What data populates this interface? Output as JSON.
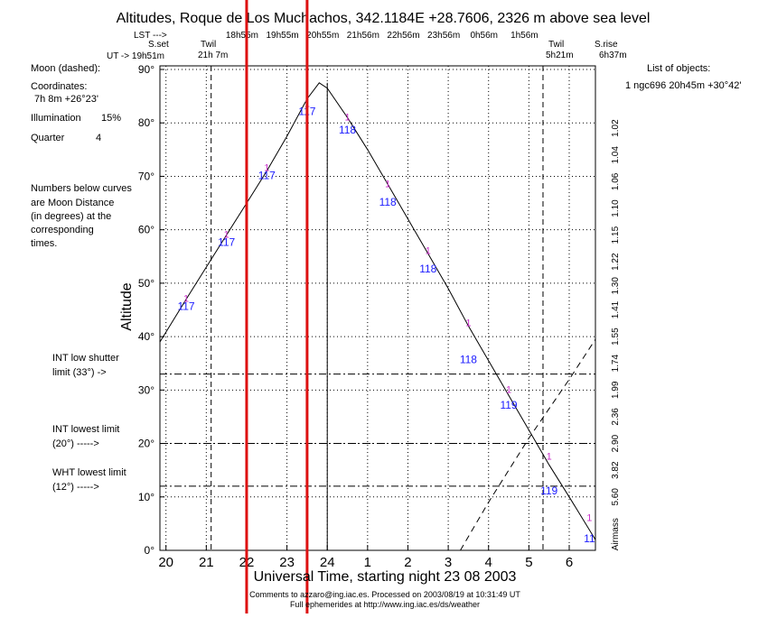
{
  "title": "Altitudes, Roque de Los Muchachos, 342.1184E +28.7606, 2326 m above sea level",
  "header": {
    "lst_label": "LST --->",
    "ut_label": "UT -> 19h51m",
    "sset_label": "S.set",
    "twil_left_label": "Twil",
    "twil_left_time": "21h 7m",
    "twil_right_label": "Twil",
    "twil_right_time": "5h21m",
    "srise_label": "S.rise",
    "srise_time": "6h37m",
    "lst_ticks": [
      "18h55m",
      "19h55m",
      "20h55m",
      "21h56m",
      "22h56m",
      "23h56m",
      "0h56m",
      "1h56m"
    ]
  },
  "left_panel": {
    "moon_label": "Moon (dashed):",
    "coords_label": "Coordinates:",
    "coords_value": "7h 8m  +26°23'",
    "illum_label": "Illumination",
    "illum_value": "15%",
    "quarter_label": "Quarter",
    "quarter_value": "4",
    "note_lines": [
      "Numbers below curves",
      "are Moon Distance",
      "(in degrees) at the",
      "corresponding",
      "times."
    ],
    "int_shutter_lines": [
      "INT low shutter",
      "limit (33°) ->"
    ],
    "int_lowest_lines": [
      "INT lowest limit",
      "(20°) ----->"
    ],
    "wht_lowest_lines": [
      "WHT lowest limit",
      "(12°) ----->"
    ]
  },
  "right_panel": {
    "list_title": "List of objects:",
    "object_line": "1 ngc696 20h45m +30°42'"
  },
  "footer": {
    "line1": "Comments to azzaro@ing.iac.es. Processed on 2003/08/19 at 10:31:49 UT",
    "line2": "Full ephemerides at http://www.ing.iac.es/ds/weather"
  },
  "colors": {
    "curve": "#000000",
    "moon_distance": "#1a1aff",
    "object_marker": "#cc33cc",
    "highlight_lines": "#dd1111"
  },
  "chart_data": {
    "type": "line",
    "title": "Altitudes, Roque de Los Muchachos, 342.1184E +28.7606, 2326 m above sea level",
    "xlabel": "Universal Time, starting night 23 08 2003",
    "ylabel": "Altitude",
    "y2label": "Airmass",
    "xlim": [
      19.85,
      6.65
    ],
    "ylim": [
      0,
      90
    ],
    "x_ticks": [
      "20",
      "21",
      "22",
      "23",
      "24",
      "1",
      "2",
      "3",
      "4",
      "5",
      "6"
    ],
    "y_ticks": [
      "0°",
      "10°",
      "20°",
      "30°",
      "40°",
      "50°",
      "60°",
      "70°",
      "80°",
      "90°"
    ],
    "airmass_ticks": [
      {
        "label": "1.02",
        "alt": 79
      },
      {
        "label": "1.04",
        "alt": 74
      },
      {
        "label": "1.06",
        "alt": 69
      },
      {
        "label": "1.10",
        "alt": 64
      },
      {
        "label": "1.15",
        "alt": 59
      },
      {
        "label": "1.22",
        "alt": 54
      },
      {
        "label": "1.30",
        "alt": 49.5
      },
      {
        "label": "1.41",
        "alt": 45
      },
      {
        "label": "1.55",
        "alt": 40
      },
      {
        "label": "1.74",
        "alt": 35
      },
      {
        "label": "1.99",
        "alt": 30
      },
      {
        "label": "2.36",
        "alt": 25
      },
      {
        "label": "2.90",
        "alt": 20
      },
      {
        "label": "3.82",
        "alt": 15
      },
      {
        "label": "5.60",
        "alt": 10
      },
      {
        "label": "Airmass",
        "alt": 3
      }
    ],
    "series": [
      {
        "name": "ngc696",
        "style": "solid",
        "points": [
          {
            "x": 19.85,
            "y": 39
          },
          {
            "x": 20.5,
            "y": 47
          },
          {
            "x": 21.0,
            "y": 53
          },
          {
            "x": 21.5,
            "y": 59
          },
          {
            "x": 22.0,
            "y": 65
          },
          {
            "x": 22.5,
            "y": 71
          },
          {
            "x": 23.0,
            "y": 77.5
          },
          {
            "x": 23.5,
            "y": 84.5
          },
          {
            "x": 23.8,
            "y": 87.5
          },
          {
            "x": 24.0,
            "y": 86.5
          },
          {
            "x": 24.5,
            "y": 81
          },
          {
            "x": 25.0,
            "y": 75
          },
          {
            "x": 25.5,
            "y": 68.5
          },
          {
            "x": 26.0,
            "y": 62
          },
          {
            "x": 26.5,
            "y": 55.5
          },
          {
            "x": 27.0,
            "y": 49
          },
          {
            "x": 27.5,
            "y": 42
          },
          {
            "x": 28.0,
            "y": 35.5
          },
          {
            "x": 28.5,
            "y": 29
          },
          {
            "x": 29.0,
            "y": 22.5
          },
          {
            "x": 29.5,
            "y": 16
          },
          {
            "x": 30.0,
            "y": 10
          },
          {
            "x": 30.65,
            "y": 2
          }
        ]
      },
      {
        "name": "Moon",
        "style": "dashed",
        "points": [
          {
            "x": 27.3,
            "y": 0
          },
          {
            "x": 28.0,
            "y": 9
          },
          {
            "x": 29.0,
            "y": 21
          },
          {
            "x": 30.0,
            "y": 32
          },
          {
            "x": 30.65,
            "y": 39.5
          }
        ]
      }
    ],
    "moon_distance_labels": [
      {
        "x": 20.5,
        "y": 45,
        "value": "117"
      },
      {
        "x": 21.5,
        "y": 57,
        "value": "117"
      },
      {
        "x": 22.5,
        "y": 69.5,
        "value": "117"
      },
      {
        "x": 23.5,
        "y": 81.5,
        "value": "117"
      },
      {
        "x": 24.5,
        "y": 78,
        "value": "118"
      },
      {
        "x": 25.5,
        "y": 64.5,
        "value": "118"
      },
      {
        "x": 26.5,
        "y": 52,
        "value": "118"
      },
      {
        "x": 27.5,
        "y": 35,
        "value": "118"
      },
      {
        "x": 28.5,
        "y": 26.5,
        "value": "119"
      },
      {
        "x": 29.5,
        "y": 10.5,
        "value": "119"
      },
      {
        "x": 30.5,
        "y": 1.5,
        "value": "11"
      }
    ],
    "object_markers": [
      {
        "x": 20.5,
        "y": 46.5,
        "label": "1"
      },
      {
        "x": 21.5,
        "y": 58.5,
        "label": "1"
      },
      {
        "x": 22.5,
        "y": 71,
        "label": "1"
      },
      {
        "x": 23.5,
        "y": 83,
        "label": "1"
      },
      {
        "x": 24.5,
        "y": 80.5,
        "label": "1"
      },
      {
        "x": 25.5,
        "y": 68,
        "label": "1"
      },
      {
        "x": 26.5,
        "y": 55.5,
        "label": "1"
      },
      {
        "x": 27.5,
        "y": 42,
        "label": "1"
      },
      {
        "x": 28.5,
        "y": 29.5,
        "label": "1"
      },
      {
        "x": 29.5,
        "y": 17,
        "label": "1"
      },
      {
        "x": 30.5,
        "y": 5.5,
        "label": "1"
      }
    ],
    "limits": [
      {
        "alt": 33,
        "style": "dashdot"
      },
      {
        "alt": 20,
        "style": "dashdot"
      },
      {
        "alt": 12,
        "style": "dashdot"
      }
    ],
    "event_lines": [
      {
        "name": "twilight_evening",
        "x": 21.12
      },
      {
        "name": "twilight_morning",
        "x": 29.35
      },
      {
        "name": "transit",
        "x": 24.0
      }
    ],
    "highlight_lines_ut": [
      22.0,
      23.5
    ],
    "grid": true
  }
}
